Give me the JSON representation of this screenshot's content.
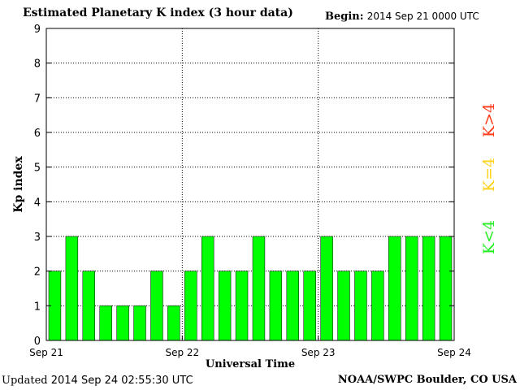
{
  "header": {
    "title": "Estimated Planetary K index (3 hour data)",
    "begin_label": "Begin:",
    "begin_value": "2014 Sep 21 0000 UTC"
  },
  "footer": {
    "updated_label": "Updated",
    "updated_value": "2014 Sep 24 02:55:30 UTC",
    "credit": "NOAA/SWPC Boulder, CO USA"
  },
  "legend": [
    {
      "label": "K>4",
      "color": "#ff3a1a"
    },
    {
      "label": "K=4",
      "color": "#ffd21a"
    },
    {
      "label": "K<4",
      "color": "#22ee22"
    }
  ],
  "colors": {
    "bar": "#00ff00",
    "bar_edge": "#000000",
    "grid": "#000000"
  },
  "chart_data": {
    "type": "bar",
    "title": "Estimated Planetary K index (3 hour data)",
    "xlabel": "Universal Time",
    "ylabel": "Kp index",
    "ylim": [
      0,
      9
    ],
    "yticks": [
      0,
      1,
      2,
      3,
      4,
      5,
      6,
      7,
      8,
      9
    ],
    "xticks": [
      "Sep 21",
      "Sep 22",
      "Sep 23",
      "Sep 24"
    ],
    "grid": true,
    "values": [
      2,
      3,
      2,
      1,
      1,
      1,
      2,
      1,
      2,
      3,
      2,
      2,
      3,
      2,
      2,
      2,
      3,
      2,
      2,
      2,
      3,
      3,
      3,
      3
    ]
  }
}
